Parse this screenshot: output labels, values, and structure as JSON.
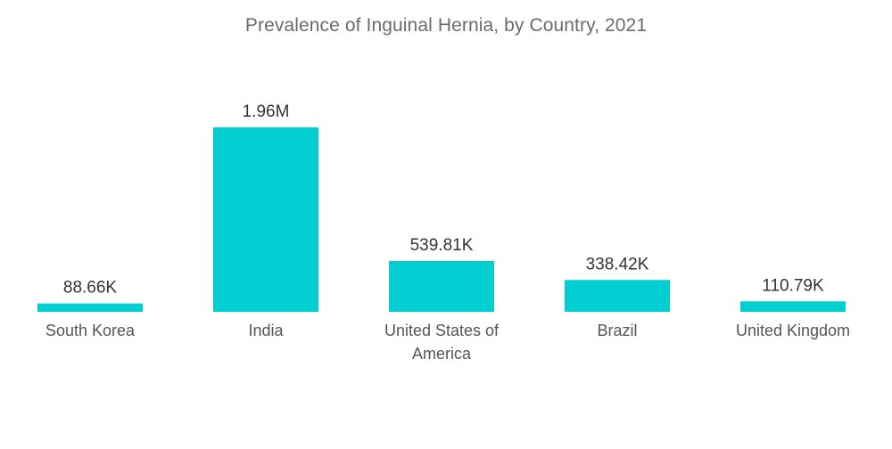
{
  "chart_data": {
    "type": "bar",
    "title": "Prevalence of Inguinal Hernia, by Country, 2021",
    "categories": [
      "South Korea",
      "India",
      "United States of America",
      "Brazil",
      "United Kingdom"
    ],
    "category_lines": [
      [
        "South Korea"
      ],
      [
        "India"
      ],
      [
        "United States of",
        "America"
      ],
      [
        "Brazil"
      ],
      [
        "United Kingdom"
      ]
    ],
    "values": [
      88660,
      1960000,
      539810,
      338420,
      110790
    ],
    "data_labels": [
      "88.66K",
      "1.96M",
      "539.81K",
      "338.42K",
      "110.79K"
    ],
    "xlabel": "",
    "ylabel": "",
    "grid": false,
    "legend": "none",
    "bar_color": "#00CED1"
  }
}
